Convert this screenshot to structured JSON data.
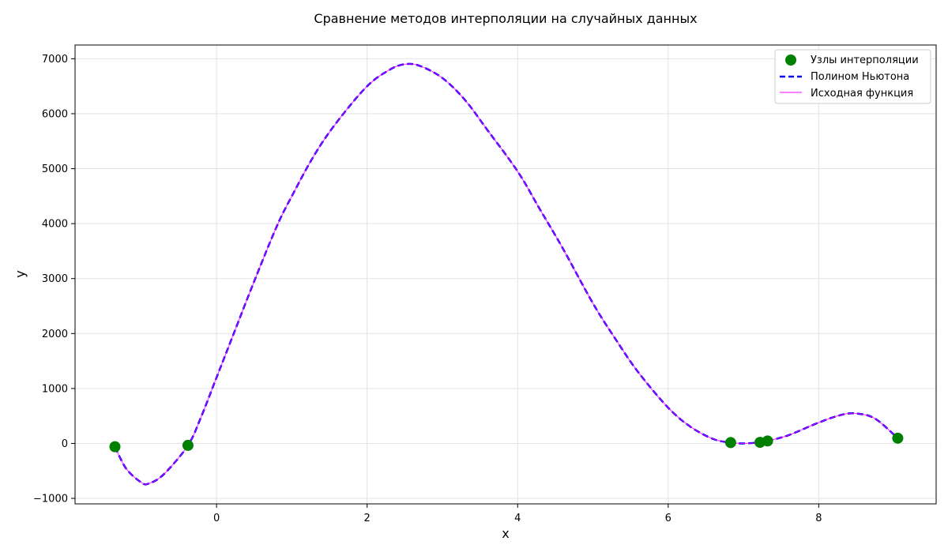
{
  "chart_data": {
    "type": "line",
    "title": "Сравнение методов интерполяции на случайных данных",
    "xlabel": "x",
    "ylabel": "y",
    "xlim": [
      -1.88,
      9.56
    ],
    "ylim": [
      -1100,
      7250
    ],
    "grid": true,
    "legend_position": "top-right",
    "x_ticks": [
      0,
      2,
      4,
      6,
      8
    ],
    "y_ticks": [
      -1000,
      0,
      1000,
      2000,
      3000,
      4000,
      5000,
      6000,
      7000
    ],
    "x_tick_labels": [
      "0",
      "2",
      "4",
      "6",
      "8"
    ],
    "y_tick_labels": [
      "−1000",
      "0",
      "1000",
      "2000",
      "3000",
      "4000",
      "5000",
      "6000",
      "7000"
    ],
    "legend": [
      "Узлы интерполяции",
      "Полином Ньютона",
      "Исходная функция"
    ],
    "colors": {
      "nodes": "#008000",
      "newton": "#0000ff",
      "original": "#ff00ff"
    },
    "nodes": {
      "x": [
        -1.35,
        -0.38,
        6.83,
        7.22,
        7.32,
        9.05
      ],
      "y": [
        -60,
        -35,
        15,
        20,
        45,
        95
      ]
    },
    "curve_x": [
      -1.35,
      -1.2,
      -1.0,
      -0.9,
      -0.7,
      -0.38,
      -0.2,
      0.0,
      0.2,
      0.5,
      0.8,
      1.0,
      1.3,
      1.6,
      2.0,
      2.3,
      2.5,
      2.7,
      3.0,
      3.3,
      3.6,
      4.0,
      4.3,
      4.6,
      5.0,
      5.3,
      5.6,
      6.0,
      6.3,
      6.6,
      6.83,
      7.0,
      7.22,
      7.32,
      7.6,
      8.0,
      8.3,
      8.5,
      8.75,
      9.05
    ],
    "newton_y": [
      -60,
      -460,
      -710,
      -730,
      -560,
      -35,
      500,
      1200,
      1900,
      2950,
      3950,
      4500,
      5250,
      5850,
      6500,
      6800,
      6900,
      6870,
      6650,
      6250,
      5700,
      4950,
      4250,
      3550,
      2550,
      1900,
      1300,
      650,
      300,
      80,
      15,
      0,
      20,
      45,
      150,
      380,
      520,
      545,
      450,
      95
    ],
    "original_y": [
      -60,
      -460,
      -710,
      -730,
      -560,
      -35,
      500,
      1200,
      1900,
      2950,
      3950,
      4500,
      5250,
      5850,
      6500,
      6800,
      6900,
      6870,
      6650,
      6250,
      5700,
      4950,
      4250,
      3550,
      2550,
      1900,
      1300,
      650,
      300,
      80,
      15,
      0,
      20,
      45,
      150,
      380,
      520,
      545,
      450,
      95
    ]
  }
}
